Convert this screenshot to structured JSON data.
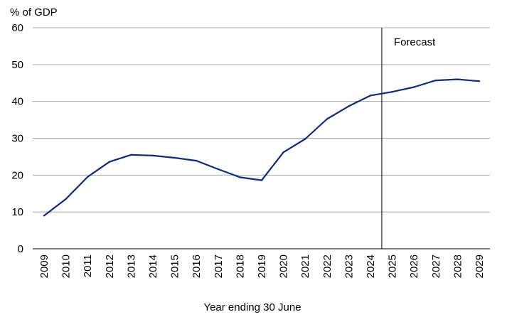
{
  "chart_data": {
    "type": "line",
    "ylabel": "% of GDP",
    "xlabel": "Year ending 30 June",
    "ylim": [
      0,
      60
    ],
    "yticks": [
      0,
      10,
      20,
      30,
      40,
      50,
      60
    ],
    "grid": "horizontal",
    "categories": [
      "2009",
      "2010",
      "2011",
      "2012",
      "2013",
      "2014",
      "2015",
      "2016",
      "2017",
      "2018",
      "2019",
      "2020",
      "2021",
      "2022",
      "2023",
      "2024",
      "2025",
      "2026",
      "2027",
      "2028",
      "2029"
    ],
    "series": [
      {
        "values": [
          9.0,
          13.5,
          19.5,
          23.6,
          25.5,
          25.3,
          24.7,
          23.9,
          21.6,
          19.4,
          18.6,
          26.2,
          29.8,
          35.2,
          38.7,
          41.6,
          42.6,
          43.9,
          45.7,
          46.0,
          45.5
        ]
      }
    ],
    "annotation": {
      "text": "Forecast",
      "divider_after": "2024"
    },
    "colors": {
      "line": "#0a2a8c",
      "grid": "#a6a6a6",
      "axis": "#000000"
    }
  }
}
